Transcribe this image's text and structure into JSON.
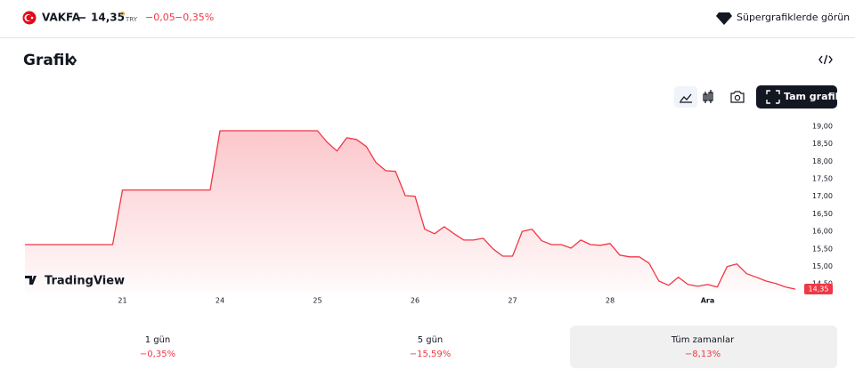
{
  "header": {
    "symbol": "VAKFA",
    "price": "14,35",
    "price_flag": "D",
    "currency": "TRY",
    "change": "−0,05",
    "change_percent": "−0,35%",
    "supercharts": "Süpergrafiklerde görün"
  },
  "section_title": "Grafik",
  "full_chart_button": "Tam grafik",
  "watermark": "TradingView",
  "chart_data": {
    "type": "area",
    "categories": [
      null,
      null,
      null,
      null,
      null,
      null,
      null,
      null,
      null,
      null,
      "21",
      null,
      null,
      null,
      null,
      null,
      null,
      null,
      null,
      null,
      "24",
      null,
      null,
      null,
      null,
      null,
      null,
      null,
      null,
      null,
      "25",
      null,
      null,
      null,
      null,
      null,
      null,
      null,
      null,
      null,
      "26",
      null,
      null,
      null,
      null,
      null,
      null,
      null,
      null,
      null,
      "27",
      null,
      null,
      null,
      null,
      null,
      null,
      null,
      null,
      null,
      "28",
      null,
      null,
      null,
      null,
      null,
      null,
      null,
      null,
      null,
      "Ara",
      null,
      null,
      null,
      null,
      null,
      null,
      null,
      null,
      null
    ],
    "series": [
      {
        "name": "VAKFA",
        "color": "#f23645",
        "values": [
          15.62,
          15.62,
          15.62,
          15.62,
          15.62,
          15.62,
          15.62,
          15.62,
          15.62,
          15.62,
          17.18,
          17.18,
          17.18,
          17.18,
          17.18,
          17.18,
          17.18,
          17.18,
          17.18,
          17.18,
          18.87,
          18.87,
          18.87,
          18.87,
          18.87,
          18.87,
          18.87,
          18.87,
          18.87,
          18.87,
          18.87,
          18.54,
          18.29,
          18.67,
          18.62,
          18.42,
          17.96,
          17.73,
          17.71,
          17.02,
          17.0,
          16.06,
          15.93,
          16.13,
          15.93,
          15.75,
          15.75,
          15.8,
          15.5,
          15.29,
          15.29,
          16.0,
          16.06,
          15.73,
          15.62,
          15.62,
          15.52,
          15.75,
          15.62,
          15.6,
          15.65,
          15.32,
          15.27,
          15.27,
          15.09,
          14.58,
          14.46,
          14.69,
          14.48,
          14.43,
          14.48,
          14.41,
          14.99,
          15.07,
          14.79,
          14.69,
          14.58,
          14.51,
          14.41,
          14.35
        ]
      }
    ],
    "ylim": [
      14.25,
      19.25
    ],
    "yticks": [
      {
        "value": 14.5,
        "label": "14,50"
      },
      {
        "value": 15,
        "label": "15,00"
      },
      {
        "value": 15.5,
        "label": "15,50"
      },
      {
        "value": 16,
        "label": "16,00"
      },
      {
        "value": 16.5,
        "label": "16,50"
      },
      {
        "value": 17,
        "label": "17,00"
      },
      {
        "value": 17.5,
        "label": "17,50"
      },
      {
        "value": 18,
        "label": "18,00"
      },
      {
        "value": 18.5,
        "label": "18,50"
      },
      {
        "value": 19,
        "label": "19,00"
      }
    ],
    "grid": false
  },
  "periods": [
    {
      "label": "1 gün",
      "change": "−0,35%"
    },
    {
      "label": "5 gün",
      "change": "−15,59%"
    },
    {
      "label": "Tüm zamanlar",
      "change": "−8,13%",
      "selected": true
    }
  ]
}
